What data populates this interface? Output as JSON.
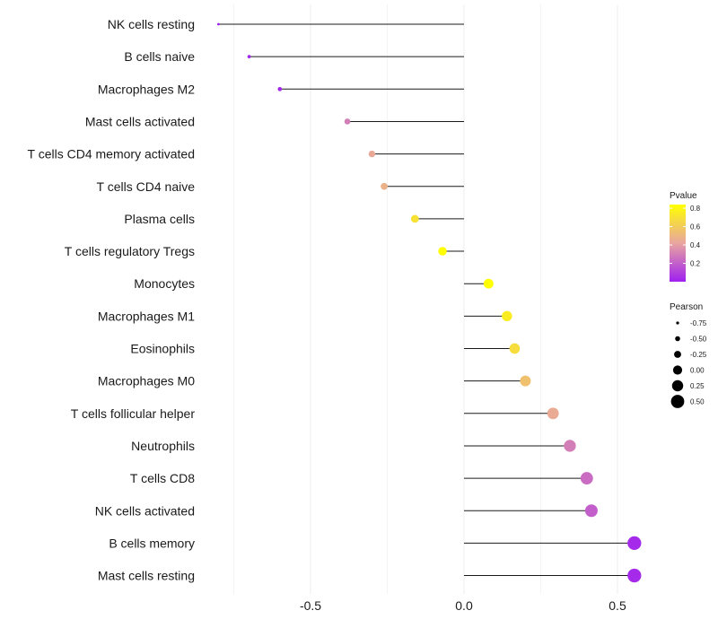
{
  "chart_data": {
    "type": "lollipop",
    "title": "",
    "xlabel": "",
    "ylabel": "",
    "xlim": [
      -0.8,
      0.55
    ],
    "xticks": [
      -0.5,
      0.0,
      0.5
    ],
    "xtick_labels": [
      "-0.5",
      "0.0",
      "0.5"
    ],
    "grid": true,
    "categories": [
      "NK cells resting",
      "B cells naive",
      "Macrophages M2",
      "Mast cells activated",
      "T cells CD4 memory activated",
      "T cells CD4 naive",
      "Plasma cells",
      "T cells regulatory  Tregs ",
      "Monocytes",
      "Macrophages M1",
      "Eosinophils",
      "Macrophages M0",
      "T cells follicular helper",
      "Neutrophils",
      "T cells CD8",
      "NK cells activated",
      "B cells memory",
      "Mast cells resting"
    ],
    "pearson": [
      -0.8,
      -0.7,
      -0.6,
      -0.38,
      -0.3,
      -0.26,
      -0.16,
      -0.07,
      0.08,
      0.14,
      0.165,
      0.2,
      0.29,
      0.345,
      0.4,
      0.415,
      0.555,
      0.555
    ],
    "pvalue": [
      0.0,
      0.01,
      0.02,
      0.3,
      0.44,
      0.48,
      0.7,
      0.84,
      0.84,
      0.75,
      0.68,
      0.55,
      0.45,
      0.3,
      0.24,
      0.2,
      0.03,
      0.03
    ],
    "legend": {
      "color": {
        "title": "Pvalue",
        "ticks": [
          0.8,
          0.6,
          0.4,
          0.2
        ],
        "tick_labels": [
          "0.8",
          "0.6",
          "0.4",
          "0.2"
        ],
        "range": [
          0.0,
          0.84
        ],
        "low_color": "#a020f0",
        "mid_color": "#e8a5a0",
        "high_color": "#ffff00"
      },
      "size": {
        "title": "Pearson",
        "values": [
          -0.75,
          -0.5,
          -0.25,
          0.0,
          0.25,
          0.5
        ],
        "labels": [
          "-0.75",
          "-0.50",
          "-0.25",
          "0.00",
          "0.25",
          "0.50"
        ]
      },
      "placement": "right"
    },
    "colors": {
      "stem": "#1a1a1a",
      "grid": "#ececec"
    }
  }
}
